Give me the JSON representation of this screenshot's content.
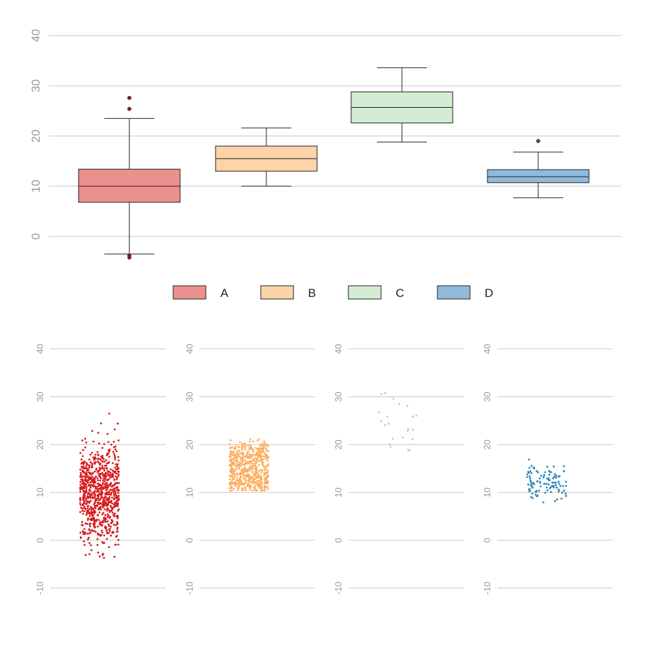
{
  "chart_data": [
    {
      "type": "box",
      "title": "",
      "xlabel": "",
      "ylabel": "",
      "ylim": [
        -6,
        42
      ],
      "yticks": [
        0,
        10,
        20,
        30,
        40
      ],
      "tick_labels": [
        "0",
        "10",
        "20",
        "30",
        "40"
      ],
      "grid": "horizontal",
      "legend": "bottom",
      "series": [
        {
          "name": "A",
          "color": "#eb8f8f",
          "dark": "#8b1a1a",
          "min": -3.5,
          "q1": 6.8,
          "median": 10.0,
          "q3": 13.4,
          "max": 23.5,
          "outliers": [
            27.6,
            25.4,
            -3.8,
            -4.2
          ]
        },
        {
          "name": "B",
          "color": "#fdd3a8",
          "dark": "#c66a1a",
          "min": 10.0,
          "q1": 13.0,
          "median": 15.5,
          "q3": 18.0,
          "max": 21.6,
          "outliers": []
        },
        {
          "name": "C",
          "color": "#d4ecd2",
          "dark": "#4c8a48",
          "min": 18.8,
          "q1": 22.6,
          "median": 25.7,
          "q3": 28.8,
          "max": 33.6,
          "outliers": []
        },
        {
          "name": "D",
          "color": "#8fbadc",
          "dark": "#1f5f8b",
          "min": 7.7,
          "q1": 10.7,
          "median": 11.9,
          "q3": 13.3,
          "max": 16.8,
          "outliers": [
            19.0
          ]
        }
      ]
    },
    {
      "type": "scatter",
      "title": "",
      "xlabel": "",
      "ylabel": "",
      "ylim": [
        -10,
        40
      ],
      "yticks": [
        -10,
        0,
        10,
        20,
        30,
        40
      ],
      "tick_labels": [
        "-10",
        "0",
        "10",
        "20",
        "30",
        "40"
      ],
      "grid": "horizontal",
      "panels": [
        {
          "name": "A",
          "color": "#d7191c",
          "n": 800,
          "center": 10,
          "sd": 5.2,
          "min": -4.3,
          "max": 27.8,
          "mode": "normal"
        },
        {
          "name": "B",
          "color": "#fdae61",
          "n": 600,
          "modes": [
            13.0,
            17.5
          ],
          "sd": 1.6,
          "min": 10.3,
          "max": 21.2,
          "mode": "bimodal"
        },
        {
          "name": "C",
          "color": "#a6dba0",
          "n": 22,
          "center": 25.5,
          "sd": 4.3,
          "min": 18.5,
          "max": 33.2,
          "mode": "normal"
        },
        {
          "name": "D",
          "color": "#2b83ba",
          "n": 110,
          "center": 12,
          "sd": 2.1,
          "min": 7.6,
          "max": 19.0,
          "mode": "normal"
        }
      ]
    }
  ]
}
